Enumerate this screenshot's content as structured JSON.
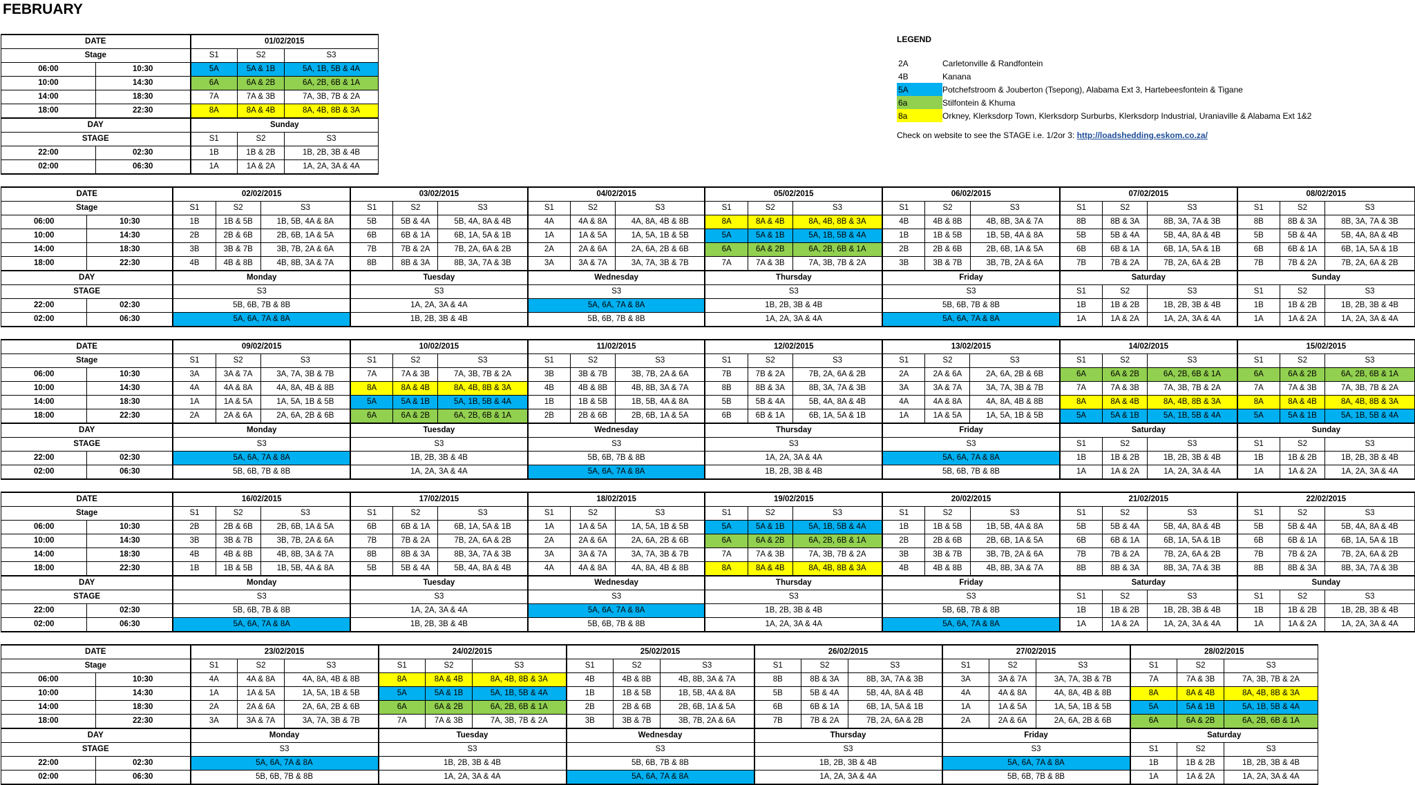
{
  "title": "FEBRUARY",
  "colors": {
    "5A": "#00b0f0",
    "6A": "#92d050",
    "8A": "#ffff00"
  },
  "labels": {
    "date": "DATE",
    "stage_lc": "Stage",
    "day": "DAY",
    "stage_uc": "STAGE",
    "s1": "S1",
    "s2": "S2",
    "s3": "S3"
  },
  "slots": [
    {
      "start": "06:00",
      "end": "10:30"
    },
    {
      "start": "10:00",
      "end": "14:30"
    },
    {
      "start": "14:00",
      "end": "18:30"
    },
    {
      "start": "18:00",
      "end": "22:30"
    }
  ],
  "night_slots": [
    {
      "start": "22:00",
      "end": "02:30"
    },
    {
      "start": "02:00",
      "end": "06:30"
    }
  ],
  "night_s3_options": {
    "A": "5A, 6A, 7A & 8A",
    "B": "1B, 2B, 3B & 4B",
    "C": "1A, 2A, 3A & 4A",
    "D": "5B, 6B, 7B & 8B"
  },
  "weekend_night": [
    [
      "1B",
      "1B & 2B",
      "1B, 2B, 3B & 4B"
    ],
    [
      "1A",
      "1A & 2A",
      "1A, 2A, 3A & 4A"
    ]
  ],
  "first_day": {
    "date": "01/02/2015",
    "day": "Sunday",
    "slots": [
      [
        "5A",
        "5A & 1B",
        "5A, 1B, 5B & 4A"
      ],
      [
        "6A",
        "6A & 2B",
        "6A, 2B, 6B & 1A"
      ],
      [
        "7A",
        "7A & 3B",
        "7A, 3B, 7B & 2A"
      ],
      [
        "8A",
        "8A & 4B",
        "8A, 4B, 8B & 3A"
      ]
    ],
    "night": [
      [
        "1B",
        "1B & 2B",
        "1B, 2B, 3B & 4B"
      ],
      [
        "1A",
        "1A & 2A",
        "1A, 2A, 3A & 4A"
      ]
    ]
  },
  "weeks": [
    {
      "days": [
        {
          "date": "02/02/2015",
          "day": "Monday",
          "slots": [
            [
              "1B",
              "1B & 5B",
              "1B, 5B, 4A & 8A"
            ],
            [
              "2B",
              "2B & 6B",
              "2B, 6B, 1A & 5A"
            ],
            [
              "3B",
              "3B & 7B",
              "3B, 7B, 2A & 6A"
            ],
            [
              "4B",
              "4B & 8B",
              "4B, 8B, 3A & 7A"
            ]
          ],
          "night": [
            "D",
            "A"
          ]
        },
        {
          "date": "03/02/2015",
          "day": "Tuesday",
          "slots": [
            [
              "5B",
              "5B & 4A",
              "5B, 4A, 8A & 4B"
            ],
            [
              "6B",
              "6B & 1A",
              "6B, 1A, 5A & 1B"
            ],
            [
              "7B",
              "7B & 2A",
              "7B, 2A, 6A & 2B"
            ],
            [
              "8B",
              "8B & 3A",
              "8B, 3A, 7A & 3B"
            ]
          ],
          "night": [
            "C",
            "B"
          ]
        },
        {
          "date": "04/02/2015",
          "day": "Wednesday",
          "slots": [
            [
              "4A",
              "4A & 8A",
              "4A, 8A, 4B & 8B"
            ],
            [
              "1A",
              "1A & 5A",
              "1A, 5A, 1B & 5B"
            ],
            [
              "2A",
              "2A & 6A",
              "2A, 6A, 2B & 6B"
            ],
            [
              "3A",
              "3A & 7A",
              "3A, 7A, 3B & 7B"
            ]
          ],
          "night": [
            "A",
            "D"
          ]
        },
        {
          "date": "05/02/2015",
          "day": "Thursday",
          "slots": [
            [
              "8A",
              "8A & 4B",
              "8A, 4B, 8B & 3A"
            ],
            [
              "5A",
              "5A & 1B",
              "5A, 1B, 5B & 4A"
            ],
            [
              "6A",
              "6A & 2B",
              "6A, 2B, 6B & 1A"
            ],
            [
              "7A",
              "7A & 3B",
              "7A, 3B, 7B & 2A"
            ]
          ],
          "night": [
            "B",
            "C"
          ]
        },
        {
          "date": "06/02/2015",
          "day": "Friday",
          "slots": [
            [
              "4B",
              "4B & 8B",
              "4B, 8B, 3A & 7A"
            ],
            [
              "1B",
              "1B & 5B",
              "1B, 5B, 4A & 8A"
            ],
            [
              "2B",
              "2B & 6B",
              "2B, 6B, 1A & 5A"
            ],
            [
              "3B",
              "3B & 7B",
              "3B, 7B, 2A & 6A"
            ]
          ],
          "night": [
            "D",
            "A"
          ]
        },
        {
          "date": "07/02/2015",
          "day": "Saturday",
          "slots": [
            [
              "8B",
              "8B & 3A",
              "8B, 3A, 7A & 3B"
            ],
            [
              "5B",
              "5B & 4A",
              "5B, 4A, 8A & 4B"
            ],
            [
              "6B",
              "6B & 1A",
              "6B, 1A, 5A & 1B"
            ],
            [
              "7B",
              "7B & 2A",
              "7B, 2A, 6A & 2B"
            ]
          ]
        },
        {
          "date": "08/02/2015",
          "day": "Sunday",
          "slots": [
            [
              "8B",
              "8B & 3A",
              "8B, 3A, 7A & 3B"
            ],
            [
              "5B",
              "5B & 4A",
              "5B, 4A, 8A & 4B"
            ],
            [
              "6B",
              "6B & 1A",
              "6B, 1A, 5A & 1B"
            ],
            [
              "7B",
              "7B & 2A",
              "7B, 2A, 6A & 2B"
            ]
          ]
        }
      ]
    },
    {
      "days": [
        {
          "date": "09/02/2015",
          "day": "Monday",
          "slots": [
            [
              "3A",
              "3A & 7A",
              "3A, 7A, 3B & 7B"
            ],
            [
              "4A",
              "4A & 8A",
              "4A, 8A, 4B & 8B"
            ],
            [
              "1A",
              "1A & 5A",
              "1A, 5A, 1B & 5B"
            ],
            [
              "2A",
              "2A & 6A",
              "2A, 6A, 2B & 6B"
            ]
          ],
          "night": [
            "A",
            "D"
          ]
        },
        {
          "date": "10/02/2015",
          "day": "Tuesday",
          "slots": [
            [
              "7A",
              "7A & 3B",
              "7A, 3B, 7B & 2A"
            ],
            [
              "8A",
              "8A & 4B",
              "8A, 4B, 8B & 3A"
            ],
            [
              "5A",
              "5A & 1B",
              "5A, 1B, 5B & 4A"
            ],
            [
              "6A",
              "6A & 2B",
              "6A, 2B, 6B & 1A"
            ]
          ],
          "night": [
            "B",
            "C"
          ]
        },
        {
          "date": "11/02/2015",
          "day": "Wednesday",
          "slots": [
            [
              "3B",
              "3B & 7B",
              "3B, 7B, 2A & 6A"
            ],
            [
              "4B",
              "4B & 8B",
              "4B, 8B, 3A & 7A"
            ],
            [
              "1B",
              "1B & 5B",
              "1B, 5B, 4A & 8A"
            ],
            [
              "2B",
              "2B & 6B",
              "2B, 6B, 1A & 5A"
            ]
          ],
          "night": [
            "D",
            "A"
          ]
        },
        {
          "date": "12/02/2015",
          "day": "Thursday",
          "slots": [
            [
              "7B",
              "7B & 2A",
              "7B, 2A, 6A & 2B"
            ],
            [
              "8B",
              "8B & 3A",
              "8B, 3A, 7A & 3B"
            ],
            [
              "5B",
              "5B & 4A",
              "5B, 4A, 8A & 4B"
            ],
            [
              "6B",
              "6B & 1A",
              "6B, 1A, 5A & 1B"
            ]
          ],
          "night": [
            "C",
            "B"
          ]
        },
        {
          "date": "13/02/2015",
          "day": "Friday",
          "slots": [
            [
              "2A",
              "2A & 6A",
              "2A, 6A, 2B & 6B"
            ],
            [
              "3A",
              "3A & 7A",
              "3A, 7A, 3B & 7B"
            ],
            [
              "4A",
              "4A & 8A",
              "4A, 8A, 4B & 8B"
            ],
            [
              "1A",
              "1A & 5A",
              "1A, 5A, 1B & 5B"
            ]
          ],
          "night": [
            "A",
            "D"
          ]
        },
        {
          "date": "14/02/2015",
          "day": "Saturday",
          "slots": [
            [
              "6A",
              "6A & 2B",
              "6A, 2B, 6B & 1A"
            ],
            [
              "7A",
              "7A & 3B",
              "7A, 3B, 7B & 2A"
            ],
            [
              "8A",
              "8A & 4B",
              "8A, 4B, 8B & 3A"
            ],
            [
              "5A",
              "5A & 1B",
              "5A, 1B, 5B & 4A"
            ]
          ]
        },
        {
          "date": "15/02/2015",
          "day": "Sunday",
          "slots": [
            [
              "6A",
              "6A & 2B",
              "6A, 2B, 6B & 1A"
            ],
            [
              "7A",
              "7A & 3B",
              "7A, 3B, 7B & 2A"
            ],
            [
              "8A",
              "8A & 4B",
              "8A, 4B, 8B & 3A"
            ],
            [
              "5A",
              "5A & 1B",
              "5A, 1B, 5B & 4A"
            ]
          ]
        }
      ]
    },
    {
      "days": [
        {
          "date": "16/02/2015",
          "day": "Monday",
          "slots": [
            [
              "2B",
              "2B & 6B",
              "2B, 6B, 1A & 5A"
            ],
            [
              "3B",
              "3B & 7B",
              "3B, 7B, 2A & 6A"
            ],
            [
              "4B",
              "4B & 8B",
              "4B, 8B, 3A & 7A"
            ],
            [
              "1B",
              "1B & 5B",
              "1B, 5B, 4A & 8A"
            ]
          ],
          "night": [
            "D",
            "A"
          ]
        },
        {
          "date": "17/02/2015",
          "day": "Tuesday",
          "slots": [
            [
              "6B",
              "6B & 1A",
              "6B, 1A, 5A & 1B"
            ],
            [
              "7B",
              "7B & 2A",
              "7B, 2A, 6A & 2B"
            ],
            [
              "8B",
              "8B & 3A",
              "8B, 3A, 7A & 3B"
            ],
            [
              "5B",
              "5B & 4A",
              "5B, 4A, 8A & 4B"
            ]
          ],
          "night": [
            "C",
            "B"
          ]
        },
        {
          "date": "18/02/2015",
          "day": "Wednesday",
          "slots": [
            [
              "1A",
              "1A & 5A",
              "1A, 5A, 1B & 5B"
            ],
            [
              "2A",
              "2A & 6A",
              "2A, 6A, 2B & 6B"
            ],
            [
              "3A",
              "3A & 7A",
              "3A, 7A, 3B & 7B"
            ],
            [
              "4A",
              "4A & 8A",
              "4A, 8A, 4B & 8B"
            ]
          ],
          "night": [
            "A",
            "D"
          ]
        },
        {
          "date": "19/02/2015",
          "day": "Thursday",
          "slots": [
            [
              "5A",
              "5A & 1B",
              "5A, 1B, 5B & 4A"
            ],
            [
              "6A",
              "6A & 2B",
              "6A, 2B, 6B & 1A"
            ],
            [
              "7A",
              "7A & 3B",
              "7A, 3B, 7B & 2A"
            ],
            [
              "8A",
              "8A & 4B",
              "8A, 4B, 8B & 3A"
            ]
          ],
          "night": [
            "B",
            "C"
          ]
        },
        {
          "date": "20/02/2015",
          "day": "Friday",
          "slots": [
            [
              "1B",
              "1B & 5B",
              "1B, 5B, 4A & 8A"
            ],
            [
              "2B",
              "2B & 6B",
              "2B, 6B, 1A & 5A"
            ],
            [
              "3B",
              "3B & 7B",
              "3B, 7B, 2A & 6A"
            ],
            [
              "4B",
              "4B & 8B",
              "4B, 8B, 3A & 7A"
            ]
          ],
          "night": [
            "D",
            "A"
          ]
        },
        {
          "date": "21/02/2015",
          "day": "Saturday",
          "slots": [
            [
              "5B",
              "5B & 4A",
              "5B, 4A, 8A & 4B"
            ],
            [
              "6B",
              "6B & 1A",
              "6B, 1A, 5A & 1B"
            ],
            [
              "7B",
              "7B & 2A",
              "7B, 2A, 6A & 2B"
            ],
            [
              "8B",
              "8B & 3A",
              "8B, 3A, 7A & 3B"
            ]
          ]
        },
        {
          "date": "22/02/2015",
          "day": "Sunday",
          "slots": [
            [
              "5B",
              "5B & 4A",
              "5B, 4A, 8A & 4B"
            ],
            [
              "6B",
              "6B & 1A",
              "6B, 1A, 5A & 1B"
            ],
            [
              "7B",
              "7B & 2A",
              "7B, 2A, 6A & 2B"
            ],
            [
              "8B",
              "8B & 3A",
              "8B, 3A, 7A & 3B"
            ]
          ]
        }
      ]
    },
    {
      "days": [
        {
          "date": "23/02/2015",
          "day": "Monday",
          "slots": [
            [
              "4A",
              "4A & 8A",
              "4A, 8A, 4B & 8B"
            ],
            [
              "1A",
              "1A & 5A",
              "1A, 5A, 1B & 5B"
            ],
            [
              "2A",
              "2A & 6A",
              "2A, 6A, 2B & 6B"
            ],
            [
              "3A",
              "3A & 7A",
              "3A, 7A, 3B & 7B"
            ]
          ],
          "night": [
            "A",
            "D"
          ]
        },
        {
          "date": "24/02/2015",
          "day": "Tuesday",
          "slots": [
            [
              "8A",
              "8A & 4B",
              "8A, 4B, 8B & 3A"
            ],
            [
              "5A",
              "5A & 1B",
              "5A, 1B, 5B & 4A"
            ],
            [
              "6A",
              "6A & 2B",
              "6A, 2B, 6B & 1A"
            ],
            [
              "7A",
              "7A & 3B",
              "7A, 3B, 7B & 2A"
            ]
          ],
          "night": [
            "B",
            "C"
          ]
        },
        {
          "date": "25/02/2015",
          "day": "Wednesday",
          "slots": [
            [
              "4B",
              "4B & 8B",
              "4B, 8B, 3A & 7A"
            ],
            [
              "1B",
              "1B & 5B",
              "1B, 5B, 4A & 8A"
            ],
            [
              "2B",
              "2B & 6B",
              "2B, 6B, 1A & 5A"
            ],
            [
              "3B",
              "3B & 7B",
              "3B, 7B, 2A & 6A"
            ]
          ],
          "night": [
            "D",
            "A"
          ]
        },
        {
          "date": "26/02/2015",
          "day": "Thursday",
          "slots": [
            [
              "8B",
              "8B & 3A",
              "8B, 3A, 7A & 3B"
            ],
            [
              "5B",
              "5B & 4A",
              "5B, 4A, 8A & 4B"
            ],
            [
              "6B",
              "6B & 1A",
              "6B, 1A, 5A & 1B"
            ],
            [
              "7B",
              "7B & 2A",
              "7B, 2A, 6A & 2B"
            ]
          ],
          "night": [
            "B",
            "C"
          ]
        },
        {
          "date": "27/02/2015",
          "day": "Friday",
          "slots": [
            [
              "3A",
              "3A & 7A",
              "3A, 7A, 3B & 7B"
            ],
            [
              "4A",
              "4A & 8A",
              "4A, 8A, 4B & 8B"
            ],
            [
              "1A",
              "1A & 5A",
              "1A, 5A, 1B & 5B"
            ],
            [
              "2A",
              "2A & 6A",
              "2A, 6A, 2B & 6B"
            ]
          ],
          "night": [
            "A",
            "D"
          ]
        },
        {
          "date": "28/02/2015",
          "day": "Saturday",
          "slots": [
            [
              "7A",
              "7A & 3B",
              "7A, 3B, 7B & 2A"
            ],
            [
              "8A",
              "8A & 4B",
              "8A, 4B, 8B & 3A"
            ],
            [
              "5A",
              "5A & 1B",
              "5A, 1B, 5B & 4A"
            ],
            [
              "6A",
              "6A & 2B",
              "6A, 2B, 6B & 1A"
            ]
          ]
        }
      ]
    }
  ],
  "legend": {
    "title": "LEGEND",
    "items": [
      {
        "code": "2A",
        "text": "Carletonville & Randfontein",
        "color": ""
      },
      {
        "code": "4B",
        "text": "Kanana",
        "color": ""
      },
      {
        "code": "5A",
        "text": "Potchefstroom & Jouberton (Tsepong), Alabama Ext 3, Hartebeesfontein & Tigane",
        "color": "#00b0f0"
      },
      {
        "code": "6a",
        "text": "Stilfontein & Khuma",
        "color": "#92d050"
      },
      {
        "code": "8a",
        "text": "Orkney, Klerksdorp Town, Klerksdorp Surburbs, Klerksdorp Industrial, Uraniaville & Alabama Ext 1&2",
        "color": "#ffff00"
      }
    ],
    "note": "Check on website to see the STAGE i.e. 1/2or 3: ",
    "link": "http://loadshedding.eskom.co.za/"
  }
}
